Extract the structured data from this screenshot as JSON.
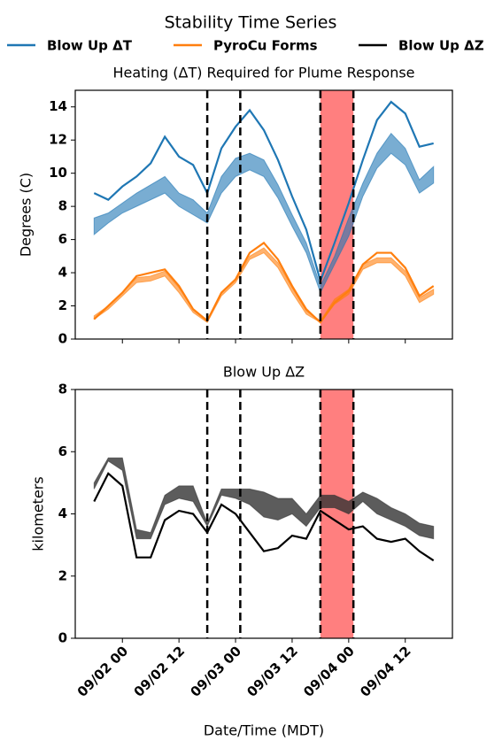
{
  "figure": {
    "title": "Stability Time Series"
  },
  "chart_data": [
    {
      "type": "line",
      "title": "Heating (ΔT) Required for Plume Response",
      "ylabel": "Degrees (C)",
      "x": [
        "09/01 18",
        "09/01 21",
        "09/02 00",
        "09/02 03",
        "09/02 06",
        "09/02 09",
        "09/02 12",
        "09/02 15",
        "09/02 18",
        "09/02 21",
        "09/03 00",
        "09/03 03",
        "09/03 06",
        "09/03 09",
        "09/03 12",
        "09/03 15",
        "09/03 18",
        "09/03 21",
        "09/04 00",
        "09/04 03",
        "09/04 06",
        "09/04 09",
        "09/04 12",
        "09/04 15",
        "09/04 18"
      ],
      "xlim": [
        "09/01 14",
        "09/04 22"
      ],
      "xticks": [
        "09/02 00",
        "09/02 12",
        "09/03 00",
        "09/03 12",
        "09/04 00",
        "09/04 12"
      ],
      "ylim": [
        0,
        15
      ],
      "yticks": [
        0,
        2,
        4,
        6,
        8,
        10,
        12,
        14
      ],
      "vlines": [
        "09/02 18",
        "09/03 01",
        "09/03 18",
        "09/04 01"
      ],
      "span": [
        "09/03 18",
        "09/04 01"
      ],
      "span_color": "#ff0000",
      "series": [
        {
          "name": "Blow Up ΔT",
          "color": "#1f77b4",
          "values": [
            8.8,
            8.4,
            9.2,
            9.8,
            10.6,
            12.2,
            11.0,
            10.5,
            8.8,
            11.5,
            12.8,
            13.8,
            12.6,
            10.8,
            8.6,
            6.6,
            3.5,
            5.8,
            8.2,
            10.8,
            13.2,
            14.3,
            13.6,
            11.6,
            11.8
          ]
        },
        {
          "name": "PyroCu Forms",
          "color": "#ff7f0e",
          "values": [
            1.2,
            2.0,
            2.8,
            3.8,
            4.0,
            4.2,
            3.2,
            1.8,
            1.1,
            2.8,
            3.6,
            5.2,
            5.8,
            4.8,
            3.2,
            1.8,
            1.0,
            2.2,
            2.9,
            4.5,
            5.2,
            5.2,
            4.3,
            2.6,
            3.2
          ]
        }
      ],
      "bands": [
        {
          "color": "#1f77b4",
          "lower": [
            6.3,
            7.0,
            7.6,
            8.0,
            8.4,
            8.8,
            8.0,
            7.5,
            7.0,
            8.8,
            9.8,
            10.2,
            9.8,
            8.5,
            6.8,
            5.2,
            2.8,
            4.5,
            6.2,
            8.6,
            10.3,
            11.2,
            10.5,
            8.8,
            9.4
          ],
          "upper": [
            7.3,
            7.6,
            8.2,
            8.8,
            9.3,
            9.8,
            8.8,
            8.4,
            7.6,
            9.8,
            10.9,
            11.2,
            10.8,
            9.3,
            7.5,
            5.8,
            3.2,
            5.0,
            7.3,
            9.4,
            11.2,
            12.4,
            11.5,
            9.6,
            10.4
          ]
        },
        {
          "color": "#ff7f0e",
          "lower": [
            1.2,
            1.8,
            2.6,
            3.4,
            3.5,
            3.8,
            2.8,
            1.6,
            1.0,
            2.6,
            3.4,
            4.8,
            5.2,
            4.3,
            2.8,
            1.5,
            1.0,
            2.1,
            2.7,
            4.2,
            4.6,
            4.6,
            3.8,
            2.2,
            2.7
          ],
          "upper": [
            1.4,
            2.0,
            2.8,
            3.7,
            3.8,
            4.1,
            3.1,
            1.8,
            1.1,
            2.8,
            3.6,
            5.0,
            5.5,
            4.6,
            3.1,
            1.7,
            1.1,
            2.4,
            3.0,
            4.5,
            4.9,
            4.9,
            4.1,
            2.5,
            3.0
          ]
        }
      ]
    },
    {
      "type": "line",
      "title": "Blow Up ΔZ",
      "ylabel": "kilometers",
      "xlabel": "Date/Time (MDT)",
      "x": [
        "09/01 18",
        "09/01 21",
        "09/02 00",
        "09/02 03",
        "09/02 06",
        "09/02 09",
        "09/02 12",
        "09/02 15",
        "09/02 18",
        "09/02 21",
        "09/03 00",
        "09/03 03",
        "09/03 06",
        "09/03 09",
        "09/03 12",
        "09/03 15",
        "09/03 18",
        "09/03 21",
        "09/04 00",
        "09/04 03",
        "09/04 06",
        "09/04 09",
        "09/04 12",
        "09/04 15",
        "09/04 18"
      ],
      "xlim": [
        "09/01 14",
        "09/04 22"
      ],
      "xticks": [
        "09/02 00",
        "09/02 12",
        "09/03 00",
        "09/03 12",
        "09/04 00",
        "09/04 12"
      ],
      "ylim": [
        0,
        8
      ],
      "yticks": [
        0,
        2,
        4,
        6,
        8
      ],
      "vlines": [
        "09/02 18",
        "09/03 01",
        "09/03 18",
        "09/04 01"
      ],
      "span": [
        "09/03 18",
        "09/04 01"
      ],
      "span_color": "#ff0000",
      "series": [
        {
          "name": "Blow Up ΔZ",
          "color": "#000000",
          "values": [
            4.4,
            5.3,
            4.9,
            2.6,
            2.6,
            3.8,
            4.1,
            4.0,
            3.4,
            4.3,
            4.0,
            3.4,
            2.8,
            2.9,
            3.3,
            3.2,
            4.1,
            3.8,
            3.5,
            3.6,
            3.2,
            3.1,
            3.2,
            2.8,
            2.5
          ]
        }
      ],
      "bands": [
        {
          "color": "#333333",
          "lower": [
            4.8,
            5.7,
            5.4,
            3.2,
            3.2,
            4.3,
            4.5,
            4.4,
            3.6,
            4.6,
            4.5,
            4.3,
            3.9,
            3.8,
            4.0,
            3.6,
            4.2,
            4.2,
            4.0,
            4.4,
            4.0,
            3.8,
            3.6,
            3.3,
            3.2
          ],
          "upper": [
            5.0,
            5.8,
            5.8,
            3.5,
            3.4,
            4.6,
            4.9,
            4.9,
            3.7,
            4.8,
            4.8,
            4.8,
            4.7,
            4.5,
            4.5,
            4.0,
            4.6,
            4.6,
            4.4,
            4.7,
            4.5,
            4.2,
            4.0,
            3.7,
            3.6
          ]
        }
      ]
    }
  ]
}
